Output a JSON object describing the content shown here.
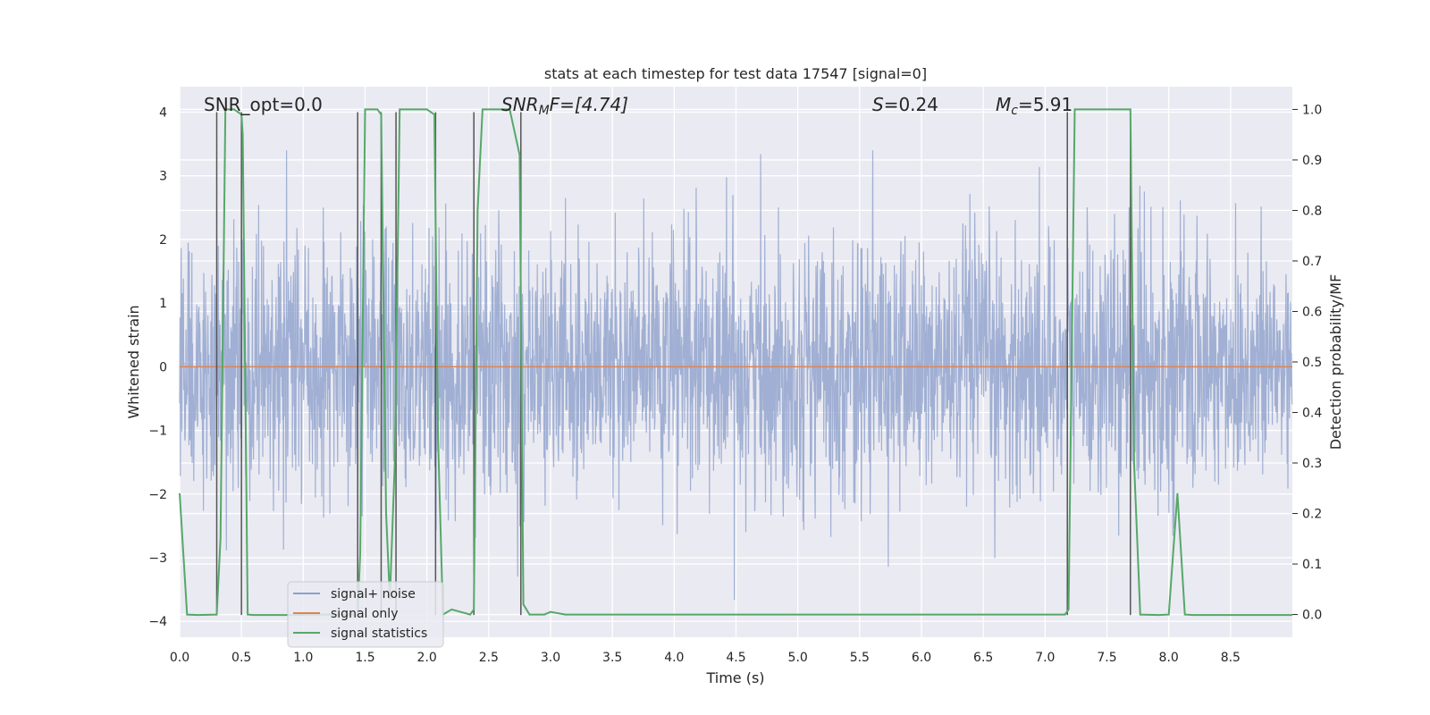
{
  "chart_data": {
    "type": "line",
    "title": "stats at each timestep for test data 17547 [signal=0]",
    "xlabel": "Time (s)",
    "ylabel": "Whitened strain",
    "y2label": "Detection probability/MF",
    "xlim": [
      0,
      9.0
    ],
    "ylim": [
      -4.25,
      4.4
    ],
    "y2lim": [
      -0.045,
      1.045
    ],
    "x_ticks": [
      0,
      0.5,
      1,
      1.5,
      2,
      2.5,
      3,
      3.5,
      4,
      4.5,
      5,
      5.5,
      6,
      6.5,
      7,
      7.5,
      8,
      8.5
    ],
    "x_tick_labels": [
      "0.0",
      "0.5",
      "1.0",
      "1.5",
      "2.0",
      "2.5",
      "3.0",
      "3.5",
      "4.0",
      "4.5",
      "5.0",
      "5.5",
      "6.0",
      "6.5",
      "7.0",
      "7.5",
      "8.0",
      "8.5"
    ],
    "y_ticks": [
      4,
      3,
      2,
      1,
      0,
      -1,
      -2,
      -3,
      -4
    ],
    "y_tick_labels": [
      "4",
      "3",
      "2",
      "1",
      "0",
      "−1",
      "−2",
      "−3",
      "−4"
    ],
    "y2_ticks": [
      1.0,
      0.9,
      0.8,
      0.7,
      0.6,
      0.5,
      0.4,
      0.3,
      0.2,
      0.1,
      0.0
    ],
    "y2_tick_labels": [
      "1.0",
      "0.9",
      "0.8",
      "0.7",
      "0.6",
      "0.5",
      "0.4",
      "0.3",
      "0.2",
      "0.1",
      "0.0"
    ],
    "grid": true,
    "legend_position": "lower-left",
    "annotations": {
      "snr_opt": "SNR_opt=0.0",
      "snr_mf_base": "SNR",
      "snr_mf_sub": "M",
      "snr_mf_rest": "F=[4.74]",
      "s_sym": "S",
      "s_rest": "=0.24",
      "mc_sym": "M",
      "mc_sub": "c",
      "mc_rest": "=5.91"
    },
    "series": [
      {
        "name": "signal+ noise",
        "color": "#8da0cb",
        "kind": "whitened-noise",
        "value_range": [
          -3.9,
          3.4
        ],
        "typical_std": 1.0
      },
      {
        "name": "signal only",
        "color": "#dd8452",
        "kind": "flat",
        "values": [
          0.0
        ]
      },
      {
        "name": "signal statistics",
        "color": "#55a868",
        "axis": "right",
        "x": [
          0.0,
          0.06,
          0.15,
          0.3,
          0.33,
          0.37,
          0.44,
          0.5,
          0.51,
          0.55,
          0.6,
          0.9,
          1.2,
          1.44,
          1.46,
          1.5,
          1.6,
          1.63,
          1.67,
          1.7,
          1.74,
          1.78,
          1.81,
          2.0,
          2.06,
          2.09,
          2.13,
          2.2,
          2.35,
          2.38,
          2.41,
          2.45,
          2.62,
          2.67,
          2.75,
          2.78,
          2.83,
          2.95,
          3.0,
          3.12,
          3.5,
          4.5,
          6.5,
          7.16,
          7.19,
          7.24,
          7.52,
          7.69,
          7.72,
          7.77,
          7.92,
          8.0,
          8.07,
          8.13,
          8.2,
          9.0
        ],
        "values": [
          0.24,
          0.0,
          -0.001,
          0.0,
          0.15,
          1.0,
          1.0,
          0.99,
          0.95,
          0.0,
          -0.001,
          -0.001,
          0.0,
          0.0,
          0.12,
          1.0,
          1.0,
          0.99,
          0.2,
          0.03,
          0.3,
          1.0,
          1.0,
          1.0,
          0.99,
          0.35,
          0.0,
          0.01,
          0.0,
          0.01,
          0.8,
          1.0,
          1.0,
          1.0,
          0.91,
          0.02,
          0.0,
          0.0,
          0.005,
          0.0,
          0.0,
          0.0,
          0.0,
          0.0,
          0.01,
          1.0,
          1.0,
          1.0,
          0.3,
          0.0,
          -0.001,
          0.0,
          0.24,
          0.0,
          -0.001,
          -0.001
        ]
      }
    ],
    "event_markers": {
      "color": "#555555",
      "x": [
        0.3,
        0.5,
        1.44,
        1.63,
        1.75,
        2.07,
        2.38,
        2.76,
        7.18,
        7.69
      ],
      "y_low": [
        -3.9,
        -3.9,
        -3.9,
        -3.9,
        -3.9,
        -3.9,
        -3.9,
        -3.9,
        -3.9,
        -3.9
      ],
      "y_high": [
        4,
        4,
        4,
        4,
        4,
        4,
        4,
        4,
        4,
        4
      ]
    }
  }
}
